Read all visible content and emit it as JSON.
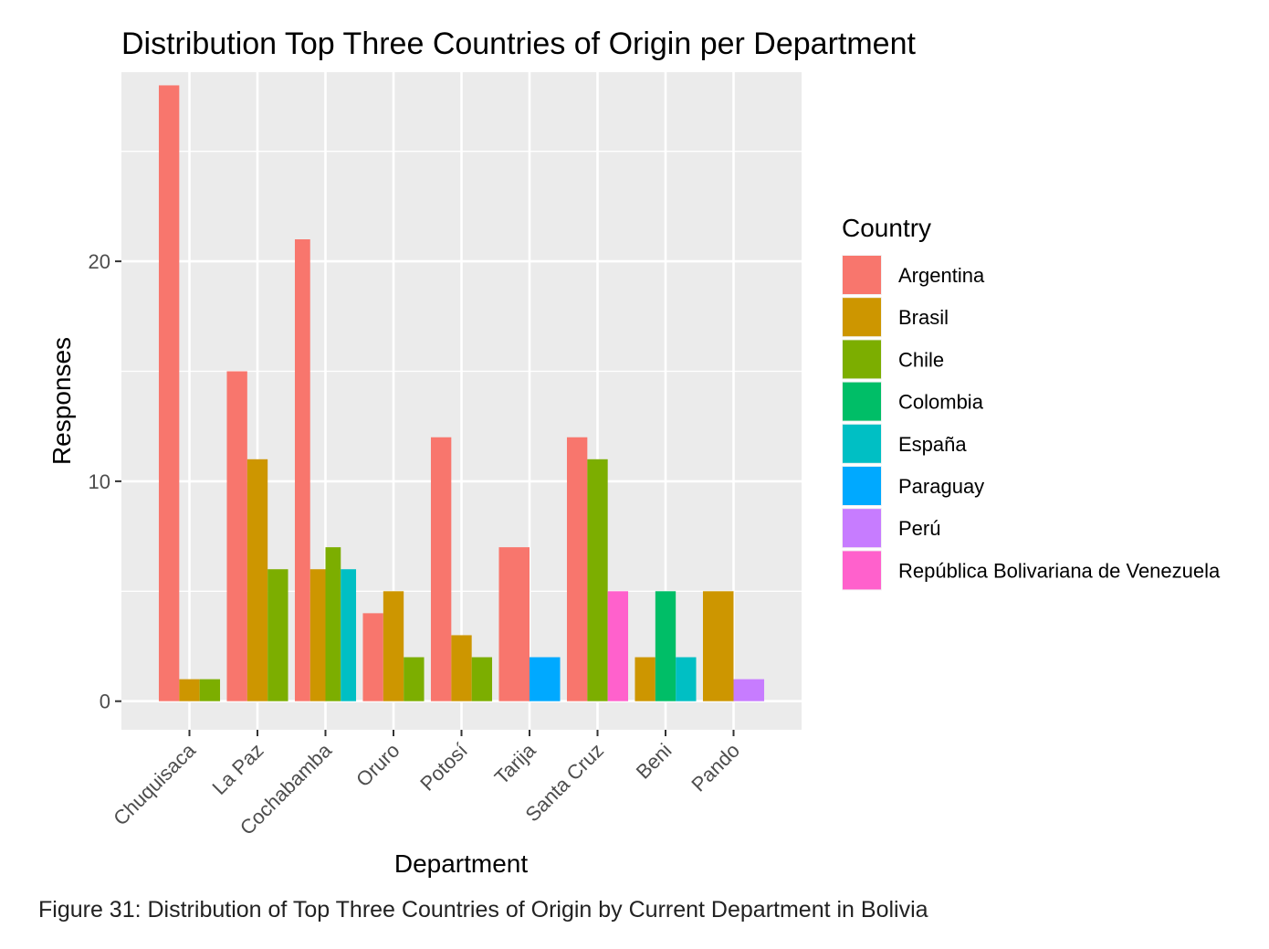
{
  "caption": "Figure 31: Distribution of Top Three Countries of Origin by Current Department in Bolivia",
  "chart_data": {
    "type": "bar",
    "title": "Distribution Top Three Countries of Origin per Department",
    "xlabel": "Department",
    "ylabel": "Responses",
    "ylim": [
      -1.3,
      28.6
    ],
    "yticks": [
      0,
      10,
      20
    ],
    "grid": true,
    "legend_position": "right",
    "legend_title": "Country",
    "categories": [
      "Chuquisaca",
      "La Paz",
      "Cochabamba",
      "Oruro",
      "Potosí",
      "Tarija",
      "Santa Cruz",
      "Beni",
      "Pando"
    ],
    "series": [
      {
        "name": "Argentina",
        "color": "#F8766D",
        "values": [
          28,
          15,
          21,
          4,
          12,
          7,
          12,
          null,
          null
        ]
      },
      {
        "name": "Brasil",
        "color": "#CD9600",
        "values": [
          1,
          11,
          6,
          5,
          3,
          null,
          null,
          2,
          5
        ]
      },
      {
        "name": "Chile",
        "color": "#7CAE00",
        "values": [
          1,
          6,
          7,
          2,
          2,
          null,
          11,
          null,
          null
        ]
      },
      {
        "name": "Colombia",
        "color": "#00BE67",
        "values": [
          null,
          null,
          null,
          null,
          null,
          null,
          null,
          5,
          null
        ]
      },
      {
        "name": "España",
        "color": "#00BFC4",
        "values": [
          null,
          null,
          6,
          null,
          null,
          null,
          null,
          2,
          null
        ]
      },
      {
        "name": "Paraguay",
        "color": "#00A9FF",
        "values": [
          null,
          null,
          null,
          null,
          null,
          2,
          null,
          null,
          null
        ]
      },
      {
        "name": "Perú",
        "color": "#C77CFF",
        "values": [
          null,
          null,
          null,
          null,
          null,
          null,
          null,
          null,
          1
        ]
      },
      {
        "name": "República Bolivariana de Venezuela",
        "color": "#FF61CC",
        "values": [
          null,
          null,
          null,
          null,
          null,
          null,
          5,
          null,
          null
        ]
      }
    ]
  }
}
